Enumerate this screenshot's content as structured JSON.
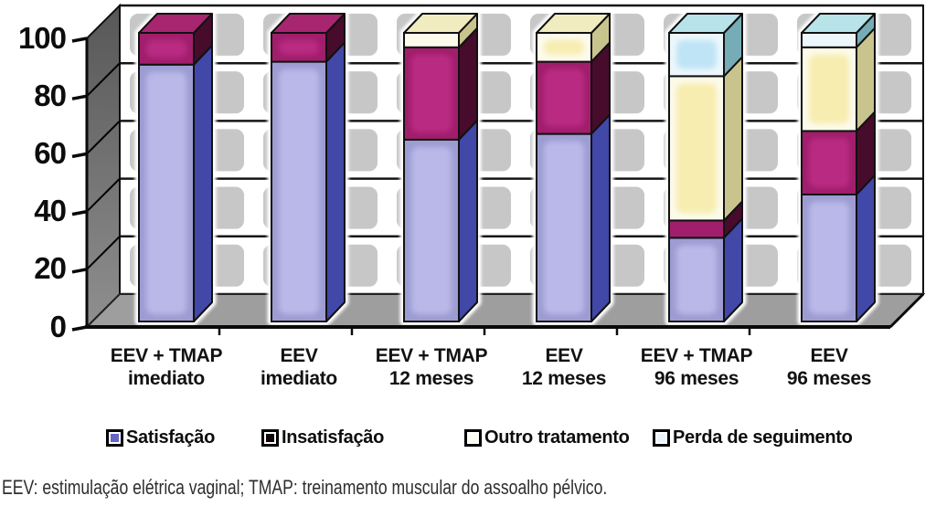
{
  "chart_data": {
    "type": "bar",
    "stacked": true,
    "title": "",
    "xlabel": "",
    "ylabel": "",
    "ylim": [
      0,
      100
    ],
    "yticks": [
      "0",
      "20",
      "40",
      "60",
      "80",
      "100"
    ],
    "grid": true,
    "legend_position": "bottom",
    "categories": [
      {
        "line1": "EEV + TMAP",
        "line2": "imediato"
      },
      {
        "line1": "EEV",
        "line2": "imediato"
      },
      {
        "line1": "EEV + TMAP",
        "line2": "12 meses"
      },
      {
        "line1": "EEV",
        "line2": "12 meses"
      },
      {
        "line1": "EEV + TMAP",
        "line2": "96 meses"
      },
      {
        "line1": "EEV",
        "line2": "96 meses"
      }
    ],
    "series": [
      {
        "name": "Satisfação",
        "values": [
          89,
          90,
          63,
          65,
          29,
          44
        ],
        "color": {
          "front": "#9d9cd2",
          "inner": "#b9b8e8",
          "side": "#4148a8",
          "top": "#8c8bd0"
        }
      },
      {
        "name": "Insatisfação",
        "values": [
          11,
          10,
          32,
          25,
          6,
          22
        ],
        "color": {
          "front": "#a11e6c",
          "inner": "#b92a82",
          "side": "#470b2c",
          "top": "#a82570"
        }
      },
      {
        "name": "Outro tratamento",
        "values": [
          0,
          0,
          5,
          10,
          50,
          29
        ],
        "color": {
          "front": "#fcfaea",
          "inner": "#f7edb0",
          "side": "#c9c48e",
          "top": "#f0ecc0"
        }
      },
      {
        "name": "Perda de seguimento",
        "values": [
          0,
          0,
          0,
          0,
          15,
          5
        ],
        "color": {
          "front": "#ecf7fc",
          "inner": "#bfe4f6",
          "side": "#76acb6",
          "top": "#b7e3e9"
        }
      }
    ]
  },
  "legend": {
    "items": [
      {
        "label": "Satisfação",
        "swatch": "#6765c8"
      },
      {
        "label": "Insatisfação",
        "swatch": "#120609"
      },
      {
        "label": "Outro tratamento",
        "swatch": "#fdfcf2"
      },
      {
        "label": "Perda de seguimento",
        "swatch": "#e9f5fb"
      }
    ]
  },
  "footnote": "EEV: estimulação elétrica vaginal; TMAP: treinamento muscular do assoalho pélvico."
}
